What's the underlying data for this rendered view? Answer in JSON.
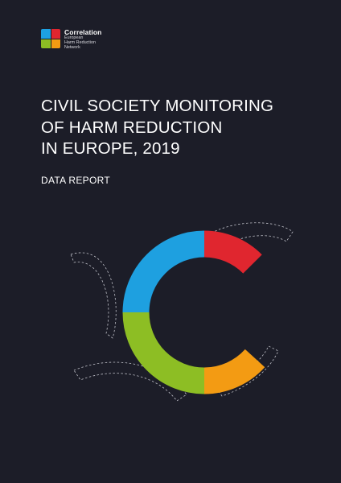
{
  "logo": {
    "name": "Correlation",
    "subtitle_lines": [
      "European",
      "Harm Reduction",
      "Network"
    ],
    "colors": {
      "top_left": "#1da1e2",
      "top_right": "#e0262f",
      "bottom_left": "#8dbe24",
      "bottom_right": "#f39b13"
    }
  },
  "title_lines": [
    "CIVIL SOCIETY MONITORING",
    "OF HARM REDUCTION",
    "IN EUROPE, 2019"
  ],
  "subtitle": "DATA REPORT",
  "graphic": {
    "icon": "correlation-c-icon",
    "segment_colors": {
      "blue": "#1ea0e0",
      "red": "#e0262f",
      "green": "#8dbe24",
      "orange": "#f39b13"
    },
    "background": "#1c1d28"
  }
}
